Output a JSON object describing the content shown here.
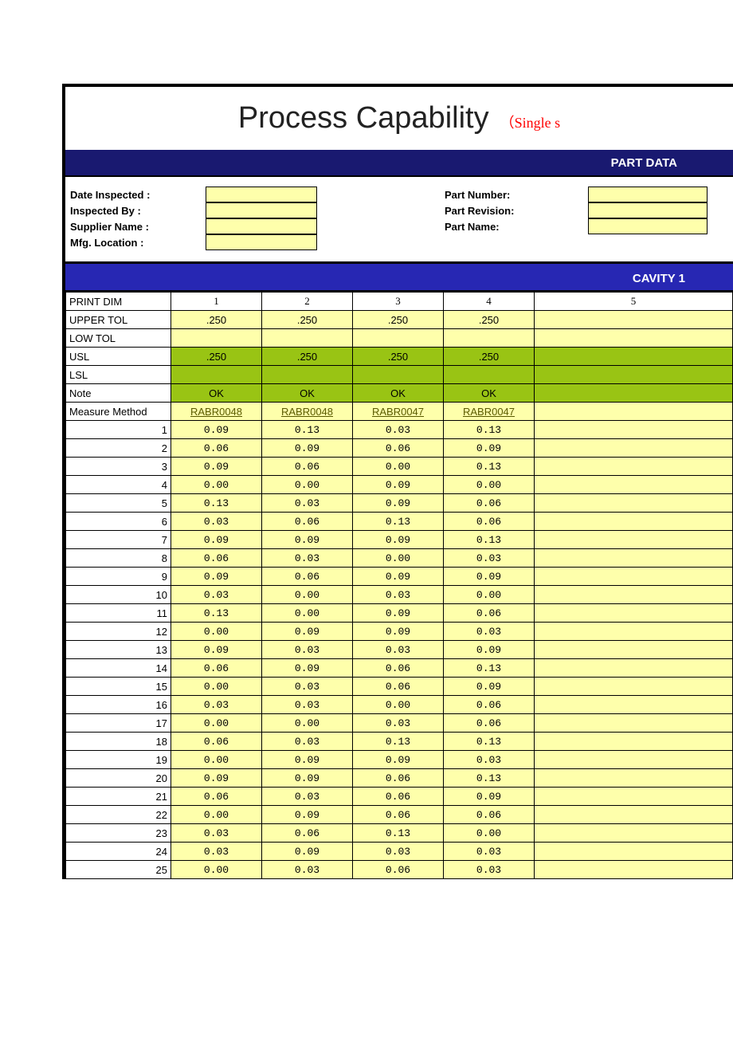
{
  "colors": {
    "header_bg": "#191970",
    "cavity_bg": "#2727b3",
    "yellow": "#feffab",
    "green": "#99c414",
    "subtitle": "#ff0000"
  },
  "title": {
    "main": "Process Capability",
    "sub": "（Single s"
  },
  "bars": {
    "part_data": "PART DATA",
    "cavity": "CAVITY 1"
  },
  "info": {
    "left_labels": [
      "Date Inspected :",
      "Inspected By :",
      "Supplier Name :",
      "Mfg. Location :"
    ],
    "right_labels": [
      "Part Number:",
      "Part Revision:",
      "Part Name:"
    ]
  },
  "table": {
    "row_headers": [
      "PRINT DIM",
      "UPPER TOL",
      "LOW TOL",
      "USL",
      "LSL",
      "Note",
      "Measure Method"
    ],
    "print_dim": [
      "1",
      "2",
      "3",
      "4",
      "5"
    ],
    "upper_tol": [
      ".250",
      ".250",
      ".250",
      ".250",
      ""
    ],
    "low_tol": [
      "",
      "",
      "",
      "",
      ""
    ],
    "usl": [
      ".250",
      ".250",
      ".250",
      ".250",
      ""
    ],
    "lsl": [
      "",
      "",
      "",
      "",
      ""
    ],
    "note": [
      "OK",
      "OK",
      "OK",
      "OK",
      ""
    ],
    "measure_method": [
      "RABR0048",
      "RABR0048",
      "RABR0047",
      "RABR0047",
      ""
    ],
    "rows": [
      [
        "0.09",
        "0.13",
        "0.03",
        "0.13",
        ""
      ],
      [
        "0.06",
        "0.09",
        "0.06",
        "0.09",
        ""
      ],
      [
        "0.09",
        "0.06",
        "0.00",
        "0.13",
        ""
      ],
      [
        "0.00",
        "0.00",
        "0.09",
        "0.00",
        ""
      ],
      [
        "0.13",
        "0.03",
        "0.09",
        "0.06",
        ""
      ],
      [
        "0.03",
        "0.06",
        "0.13",
        "0.06",
        ""
      ],
      [
        "0.09",
        "0.09",
        "0.09",
        "0.13",
        ""
      ],
      [
        "0.06",
        "0.03",
        "0.00",
        "0.03",
        ""
      ],
      [
        "0.09",
        "0.06",
        "0.09",
        "0.09",
        ""
      ],
      [
        "0.03",
        "0.00",
        "0.03",
        "0.00",
        ""
      ],
      [
        "0.13",
        "0.00",
        "0.09",
        "0.06",
        ""
      ],
      [
        "0.00",
        "0.09",
        "0.09",
        "0.03",
        ""
      ],
      [
        "0.09",
        "0.03",
        "0.03",
        "0.09",
        ""
      ],
      [
        "0.06",
        "0.09",
        "0.06",
        "0.13",
        ""
      ],
      [
        "0.00",
        "0.03",
        "0.06",
        "0.09",
        ""
      ],
      [
        "0.03",
        "0.03",
        "0.00",
        "0.06",
        ""
      ],
      [
        "0.00",
        "0.00",
        "0.03",
        "0.06",
        ""
      ],
      [
        "0.06",
        "0.03",
        "0.13",
        "0.13",
        ""
      ],
      [
        "0.00",
        "0.09",
        "0.09",
        "0.03",
        ""
      ],
      [
        "0.09",
        "0.09",
        "0.06",
        "0.13",
        ""
      ],
      [
        "0.06",
        "0.03",
        "0.06",
        "0.09",
        ""
      ],
      [
        "0.00",
        "0.09",
        "0.06",
        "0.06",
        ""
      ],
      [
        "0.03",
        "0.06",
        "0.13",
        "0.00",
        ""
      ],
      [
        "0.03",
        "0.09",
        "0.03",
        "0.03",
        ""
      ],
      [
        "0.00",
        "0.03",
        "0.06",
        "0.03",
        ""
      ]
    ]
  }
}
